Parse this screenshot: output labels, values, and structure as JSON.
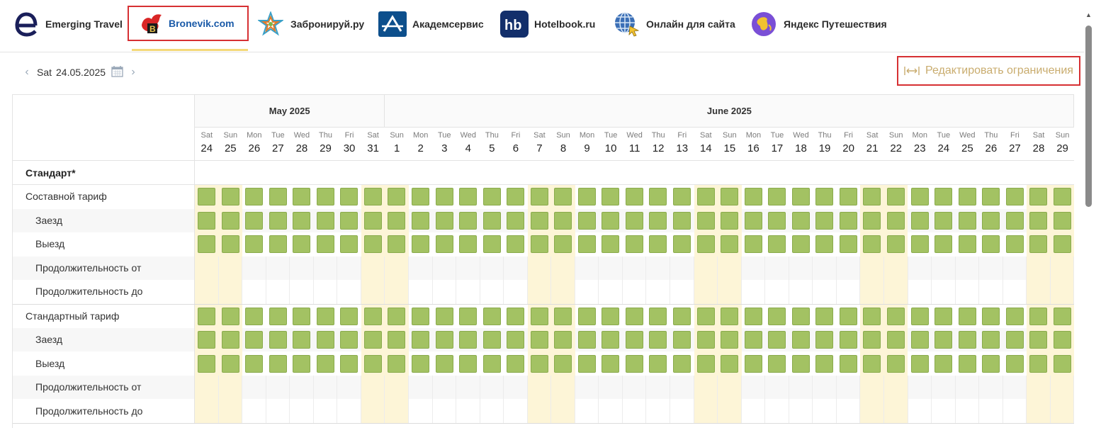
{
  "tabs": [
    {
      "label": "Emerging Travel",
      "icon": "emerging-travel-logo",
      "active": false
    },
    {
      "label": "Bronevik.com",
      "icon": "bronevik-logo",
      "active": true
    },
    {
      "label": "Забронируй.ру",
      "icon": "zabroniruy-logo",
      "active": false
    },
    {
      "label": "Академсервис",
      "icon": "akademservis-logo",
      "active": false
    },
    {
      "label": "Hotelbook.ru",
      "icon": "hotelbook-logo",
      "active": false
    },
    {
      "label": "Онлайн для сайта",
      "icon": "globe-cursor-logo",
      "active": false
    },
    {
      "label": "Яндекс Путешествия",
      "icon": "yandex-travel-logo",
      "active": false
    }
  ],
  "date_nav": {
    "day_of_week": "Sat",
    "date": "24.05.2025"
  },
  "edit_button": {
    "label": "Редактировать ограничения"
  },
  "months": [
    {
      "label": "May 2025",
      "days": 8
    },
    {
      "label": "June 2025",
      "days": 29
    }
  ],
  "days": [
    {
      "dow": "Sat",
      "num": "24"
    },
    {
      "dow": "Sun",
      "num": "25"
    },
    {
      "dow": "Mon",
      "num": "26"
    },
    {
      "dow": "Tue",
      "num": "27"
    },
    {
      "dow": "Wed",
      "num": "28"
    },
    {
      "dow": "Thu",
      "num": "29"
    },
    {
      "dow": "Fri",
      "num": "30"
    },
    {
      "dow": "Sat",
      "num": "31"
    },
    {
      "dow": "Sun",
      "num": "1"
    },
    {
      "dow": "Mon",
      "num": "2"
    },
    {
      "dow": "Tue",
      "num": "3"
    },
    {
      "dow": "Wed",
      "num": "4"
    },
    {
      "dow": "Thu",
      "num": "5"
    },
    {
      "dow": "Fri",
      "num": "6"
    },
    {
      "dow": "Sat",
      "num": "7"
    },
    {
      "dow": "Sun",
      "num": "8"
    },
    {
      "dow": "Mon",
      "num": "9"
    },
    {
      "dow": "Tue",
      "num": "10"
    },
    {
      "dow": "Wed",
      "num": "11"
    },
    {
      "dow": "Thu",
      "num": "12"
    },
    {
      "dow": "Fri",
      "num": "13"
    },
    {
      "dow": "Sat",
      "num": "14"
    },
    {
      "dow": "Sun",
      "num": "15"
    },
    {
      "dow": "Mon",
      "num": "16"
    },
    {
      "dow": "Tue",
      "num": "17"
    },
    {
      "dow": "Wed",
      "num": "18"
    },
    {
      "dow": "Thu",
      "num": "19"
    },
    {
      "dow": "Fri",
      "num": "20"
    },
    {
      "dow": "Sat",
      "num": "21"
    },
    {
      "dow": "Sun",
      "num": "22"
    },
    {
      "dow": "Mon",
      "num": "23"
    },
    {
      "dow": "Tue",
      "num": "24"
    },
    {
      "dow": "Wed",
      "num": "25"
    },
    {
      "dow": "Thu",
      "num": "26"
    },
    {
      "dow": "Fri",
      "num": "27"
    },
    {
      "dow": "Sat",
      "num": "28"
    },
    {
      "dow": "Sun",
      "num": "29"
    }
  ],
  "room": {
    "name": "Стандарт*"
  },
  "tariffs": [
    {
      "name": "Составной тариф",
      "rows": [
        "Заезд",
        "Выезд",
        "Продолжительность от",
        "Продолжительность до"
      ]
    },
    {
      "name": "Стандартный тариф",
      "rows": [
        "Заезд",
        "Выезд",
        "Продолжительность от",
        "Продолжительность до"
      ]
    }
  ],
  "colors": {
    "available": "#a3c263",
    "weekend": "#fdf5d7",
    "active_tab_border": "#d63033",
    "edit_text": "#c9ac6e"
  }
}
